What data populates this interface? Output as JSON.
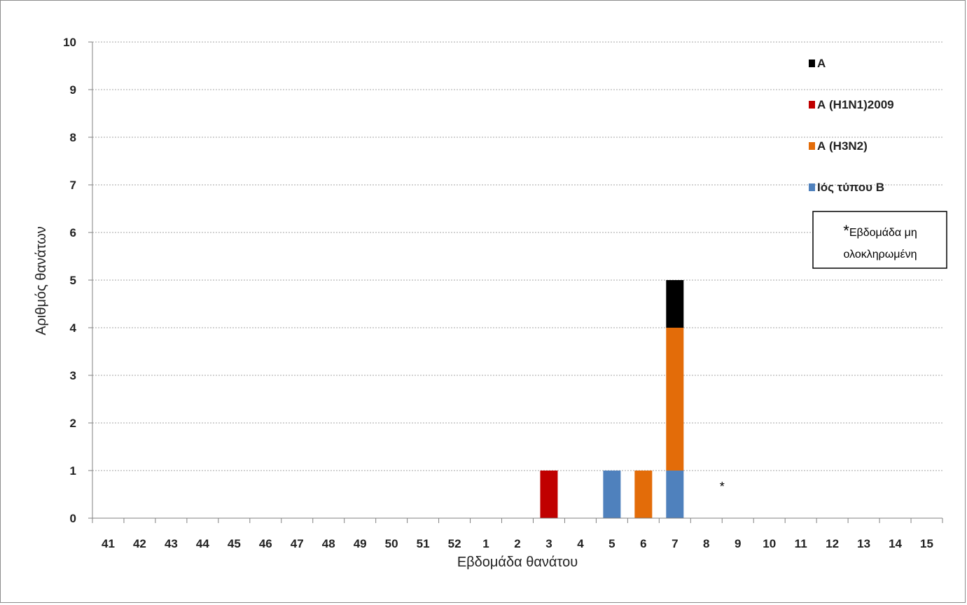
{
  "chart_data": {
    "type": "bar",
    "stacked": true,
    "xlabel": "Εβδομάδα θανάτου",
    "ylabel": "Αριθμός θανάτων",
    "ylim": [
      0,
      10
    ],
    "yticks": [
      "0",
      "1",
      "2",
      "3",
      "4",
      "5",
      "6",
      "7",
      "8",
      "9",
      "10"
    ],
    "grid": true,
    "legend_position": "top-right",
    "categories": [
      "41",
      "42",
      "43",
      "44",
      "45",
      "46",
      "47",
      "48",
      "49",
      "50",
      "51",
      "52",
      "1",
      "2",
      "3",
      "4",
      "5",
      "6",
      "7",
      "8",
      "9",
      "10",
      "11",
      "12",
      "13",
      "14",
      "15"
    ],
    "series": [
      {
        "name": "Ιός τύπου Β",
        "color": "#4f81bd",
        "values": [
          0,
          0,
          0,
          0,
          0,
          0,
          0,
          0,
          0,
          0,
          0,
          0,
          0,
          0,
          0,
          0,
          1,
          0,
          1,
          0,
          0,
          0,
          0,
          0,
          0,
          0,
          0
        ]
      },
      {
        "name": "Α (Η3Ν2)",
        "color": "#e36c09",
        "values": [
          0,
          0,
          0,
          0,
          0,
          0,
          0,
          0,
          0,
          0,
          0,
          0,
          0,
          0,
          0,
          0,
          0,
          1,
          3,
          0,
          0,
          0,
          0,
          0,
          0,
          0,
          0
        ]
      },
      {
        "name": "Α (Η1Ν1)2009",
        "color": "#c00000",
        "values": [
          0,
          0,
          0,
          0,
          0,
          0,
          0,
          0,
          0,
          0,
          0,
          0,
          0,
          0,
          1,
          0,
          0,
          0,
          0,
          0,
          0,
          0,
          0,
          0,
          0,
          0,
          0
        ]
      },
      {
        "name": "Α",
        "color": "#000000",
        "values": [
          0,
          0,
          0,
          0,
          0,
          0,
          0,
          0,
          0,
          0,
          0,
          0,
          0,
          0,
          0,
          0,
          0,
          0,
          1,
          0,
          0,
          0,
          0,
          0,
          0,
          0,
          0
        ]
      }
    ],
    "legend_order": [
      3,
      2,
      1,
      0
    ],
    "marker": {
      "text": "*",
      "category": "8"
    },
    "note": {
      "star": "*",
      "line1": "Εβδομάδα μη",
      "line2": "ολοκληρωμένη"
    }
  }
}
